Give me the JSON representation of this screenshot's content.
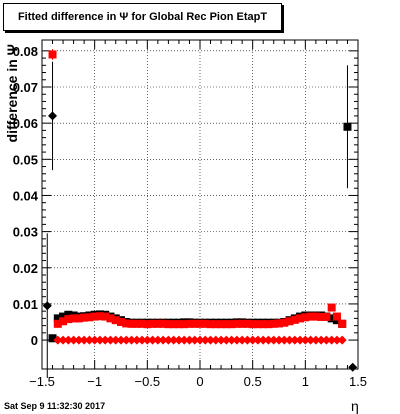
{
  "title": "Fitted difference in  Ψ  for Global Rec Pion EtapT",
  "footer": "Sat Sep  9 11:32:30 2017",
  "chart_data": {
    "type": "scatter",
    "title": "Fitted difference in  Ψ  for Global Rec Pion EtapT",
    "xlabel": "η",
    "ylabel": "difference in Ψ",
    "xlim": [
      -1.5,
      1.5
    ],
    "ylim": [
      -0.008,
      0.083
    ],
    "x_ticks": [
      "−1.5",
      "−1",
      "−0.5",
      "0",
      "0.5",
      "1",
      "1.5"
    ],
    "y_ticks": [
      "0",
      "0.01",
      "0.02",
      "0.03",
      "0.04",
      "0.05",
      "0.06",
      "0.07",
      "0.08"
    ],
    "grid": true,
    "series": [
      {
        "color": "#000000",
        "marker": "square",
        "x": [
          -1.4,
          -1.35,
          -1.3,
          -1.25,
          -1.2,
          -1.15,
          -1.1,
          -1.05,
          -1.0,
          -0.95,
          -0.9,
          -0.85,
          -0.8,
          -0.75,
          -0.7,
          -0.65,
          -0.6,
          -0.55,
          -0.5,
          -0.45,
          -0.4,
          -0.35,
          -0.3,
          -0.25,
          -0.2,
          -0.15,
          -0.1,
          -0.05,
          0.0,
          0.05,
          0.1,
          0.15,
          0.2,
          0.25,
          0.3,
          0.35,
          0.4,
          0.45,
          0.5,
          0.55,
          0.6,
          0.65,
          0.7,
          0.75,
          0.8,
          0.85,
          0.9,
          0.95,
          1.0,
          1.05,
          1.1,
          1.15,
          1.2,
          1.25,
          1.3,
          1.35,
          1.4
        ],
        "y": [
          0.0005,
          0.006,
          0.0065,
          0.007,
          0.0068,
          0.0065,
          0.0066,
          0.0068,
          0.007,
          0.0071,
          0.007,
          0.0065,
          0.006,
          0.0055,
          0.005,
          0.0048,
          0.0048,
          0.0048,
          0.0048,
          0.0048,
          0.0048,
          0.0048,
          0.0048,
          0.0048,
          0.0048,
          0.0049,
          0.0049,
          0.0048,
          0.0048,
          0.0048,
          0.0048,
          0.0048,
          0.0048,
          0.0048,
          0.0048,
          0.0049,
          0.0049,
          0.0048,
          0.0048,
          0.0048,
          0.0048,
          0.0048,
          0.0048,
          0.0048,
          0.005,
          0.0055,
          0.006,
          0.0065,
          0.0068,
          0.0068,
          0.0068,
          0.0068,
          0.0065,
          0.006,
          0.0055,
          0.0045,
          0.059
        ],
        "err": [
          0,
          0,
          0,
          0,
          0,
          0,
          0,
          0,
          0,
          0,
          0,
          0,
          0,
          0,
          0,
          0,
          0,
          0,
          0,
          0,
          0,
          0,
          0,
          0,
          0,
          0,
          0,
          0,
          0,
          0,
          0,
          0,
          0,
          0,
          0,
          0,
          0,
          0,
          0,
          0,
          0,
          0,
          0,
          0,
          0,
          0,
          0,
          0,
          0,
          0,
          0,
          0,
          0,
          0,
          0,
          0,
          0.017
        ]
      },
      {
        "color": "#ff0000",
        "marker": "square",
        "x": [
          -1.4,
          -1.35,
          -1.3,
          -1.25,
          -1.2,
          -1.15,
          -1.1,
          -1.05,
          -1.0,
          -0.95,
          -0.9,
          -0.85,
          -0.8,
          -0.75,
          -0.7,
          -0.65,
          -0.6,
          -0.55,
          -0.5,
          -0.45,
          -0.4,
          -0.35,
          -0.3,
          -0.25,
          -0.2,
          -0.15,
          -0.1,
          -0.05,
          0.0,
          0.05,
          0.1,
          0.15,
          0.2,
          0.25,
          0.3,
          0.35,
          0.4,
          0.45,
          0.5,
          0.55,
          0.6,
          0.65,
          0.7,
          0.75,
          0.8,
          0.85,
          0.9,
          0.95,
          1.0,
          1.05,
          1.1,
          1.15,
          1.2,
          1.25,
          1.3,
          1.35
        ],
        "y": [
          0.079,
          0.0045,
          0.0052,
          0.0058,
          0.006,
          0.006,
          0.0062,
          0.0063,
          0.0065,
          0.0066,
          0.0065,
          0.006,
          0.0055,
          0.005,
          0.0046,
          0.0045,
          0.0045,
          0.0045,
          0.0044,
          0.0045,
          0.0045,
          0.0045,
          0.0044,
          0.0044,
          0.0044,
          0.0044,
          0.0045,
          0.0045,
          0.0045,
          0.0045,
          0.0044,
          0.0044,
          0.0044,
          0.0044,
          0.0044,
          0.0045,
          0.0045,
          0.0045,
          0.0044,
          0.0044,
          0.0044,
          0.0044,
          0.0045,
          0.0046,
          0.0048,
          0.0052,
          0.0056,
          0.006,
          0.0063,
          0.0065,
          0.0065,
          0.0064,
          0.0064,
          0.009,
          0.0065,
          0.0045
        ],
        "err": [
          0.0015,
          0,
          0,
          0,
          0,
          0,
          0,
          0,
          0,
          0,
          0,
          0,
          0,
          0,
          0,
          0,
          0,
          0,
          0,
          0,
          0,
          0,
          0,
          0,
          0,
          0,
          0,
          0,
          0,
          0,
          0,
          0,
          0,
          0,
          0,
          0,
          0,
          0,
          0,
          0,
          0,
          0,
          0,
          0,
          0,
          0,
          0,
          0,
          0,
          0,
          0,
          0,
          0,
          0,
          0,
          0
        ]
      },
      {
        "color": "#000000",
        "marker": "diamond",
        "x": [
          -1.45,
          -1.4,
          1.45
        ],
        "y": [
          0.0095,
          0.062,
          -0.0075
        ],
        "err": [
          0.02,
          0.015,
          0
        ]
      },
      {
        "color": "#ff0000",
        "marker": "diamond",
        "x": [
          -1.35,
          -1.3,
          -1.25,
          -1.2,
          -1.15,
          -1.1,
          -1.05,
          -1.0,
          -0.95,
          -0.9,
          -0.85,
          -0.8,
          -0.75,
          -0.7,
          -0.65,
          -0.6,
          -0.55,
          -0.5,
          -0.45,
          -0.4,
          -0.35,
          -0.3,
          -0.25,
          -0.2,
          -0.15,
          -0.1,
          -0.05,
          0.0,
          0.05,
          0.1,
          0.15,
          0.2,
          0.25,
          0.3,
          0.35,
          0.4,
          0.45,
          0.5,
          0.55,
          0.6,
          0.65,
          0.7,
          0.75,
          0.8,
          0.85,
          0.9,
          0.95,
          1.0,
          1.05,
          1.1,
          1.15,
          1.2,
          1.25,
          1.3,
          1.35
        ],
        "y": [
          0,
          0,
          0,
          0,
          0,
          0,
          0,
          0,
          0,
          0,
          0,
          0,
          0,
          0,
          0,
          0,
          0,
          0,
          0,
          0,
          0,
          0,
          0,
          0,
          0,
          0,
          0,
          0,
          0,
          0,
          0,
          0,
          0,
          0,
          0,
          0,
          0,
          0,
          0,
          0,
          0,
          0,
          0,
          0,
          0,
          0,
          0,
          0,
          0,
          0,
          0,
          0,
          0,
          0,
          0
        ],
        "err": []
      }
    ]
  }
}
